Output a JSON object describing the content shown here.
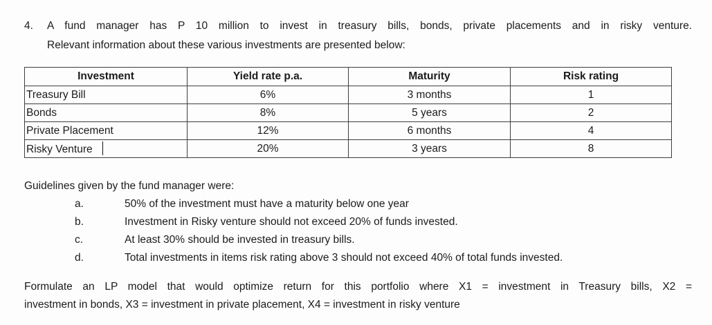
{
  "problem": {
    "number": "4.",
    "statement_line1": "A fund manager has P 10 million to invest in treasury bills, bonds, private placements and in risky venture.",
    "statement_line2": "Relevant information about these various investments are presented below:"
  },
  "table": {
    "headers": [
      "Investment",
      "Yield rate p.a.",
      "Maturity",
      "Risk rating"
    ],
    "rows": [
      [
        "Treasury Bill",
        "6%",
        "3 months",
        "1"
      ],
      [
        "Bonds",
        "8%",
        "5 years",
        "2"
      ],
      [
        "Private Placement",
        "12%",
        "6 months",
        "4"
      ],
      [
        "Risky Venture",
        "20%",
        "3 years",
        "8"
      ]
    ]
  },
  "guidelines": {
    "intro": "Guidelines given by the fund manager were:",
    "items": [
      {
        "letter": "a.",
        "text": "50% of the investment must have a maturity below one year"
      },
      {
        "letter": "b.",
        "text": "Investment in Risky venture should not exceed 20% of funds invested."
      },
      {
        "letter": "c.",
        "text": "At least 30% should be invested in treasury bills."
      },
      {
        "letter": "d.",
        "text": "Total investments in items risk rating above 3 should not exceed 40% of total funds invested."
      }
    ]
  },
  "footer": {
    "line1": "Formulate an LP model that would optimize return for this portfolio where X1 = investment in Treasury bills, X2 =",
    "line2": "investment in bonds, X3 = investment in private placement, X4 = investment in risky venture"
  }
}
